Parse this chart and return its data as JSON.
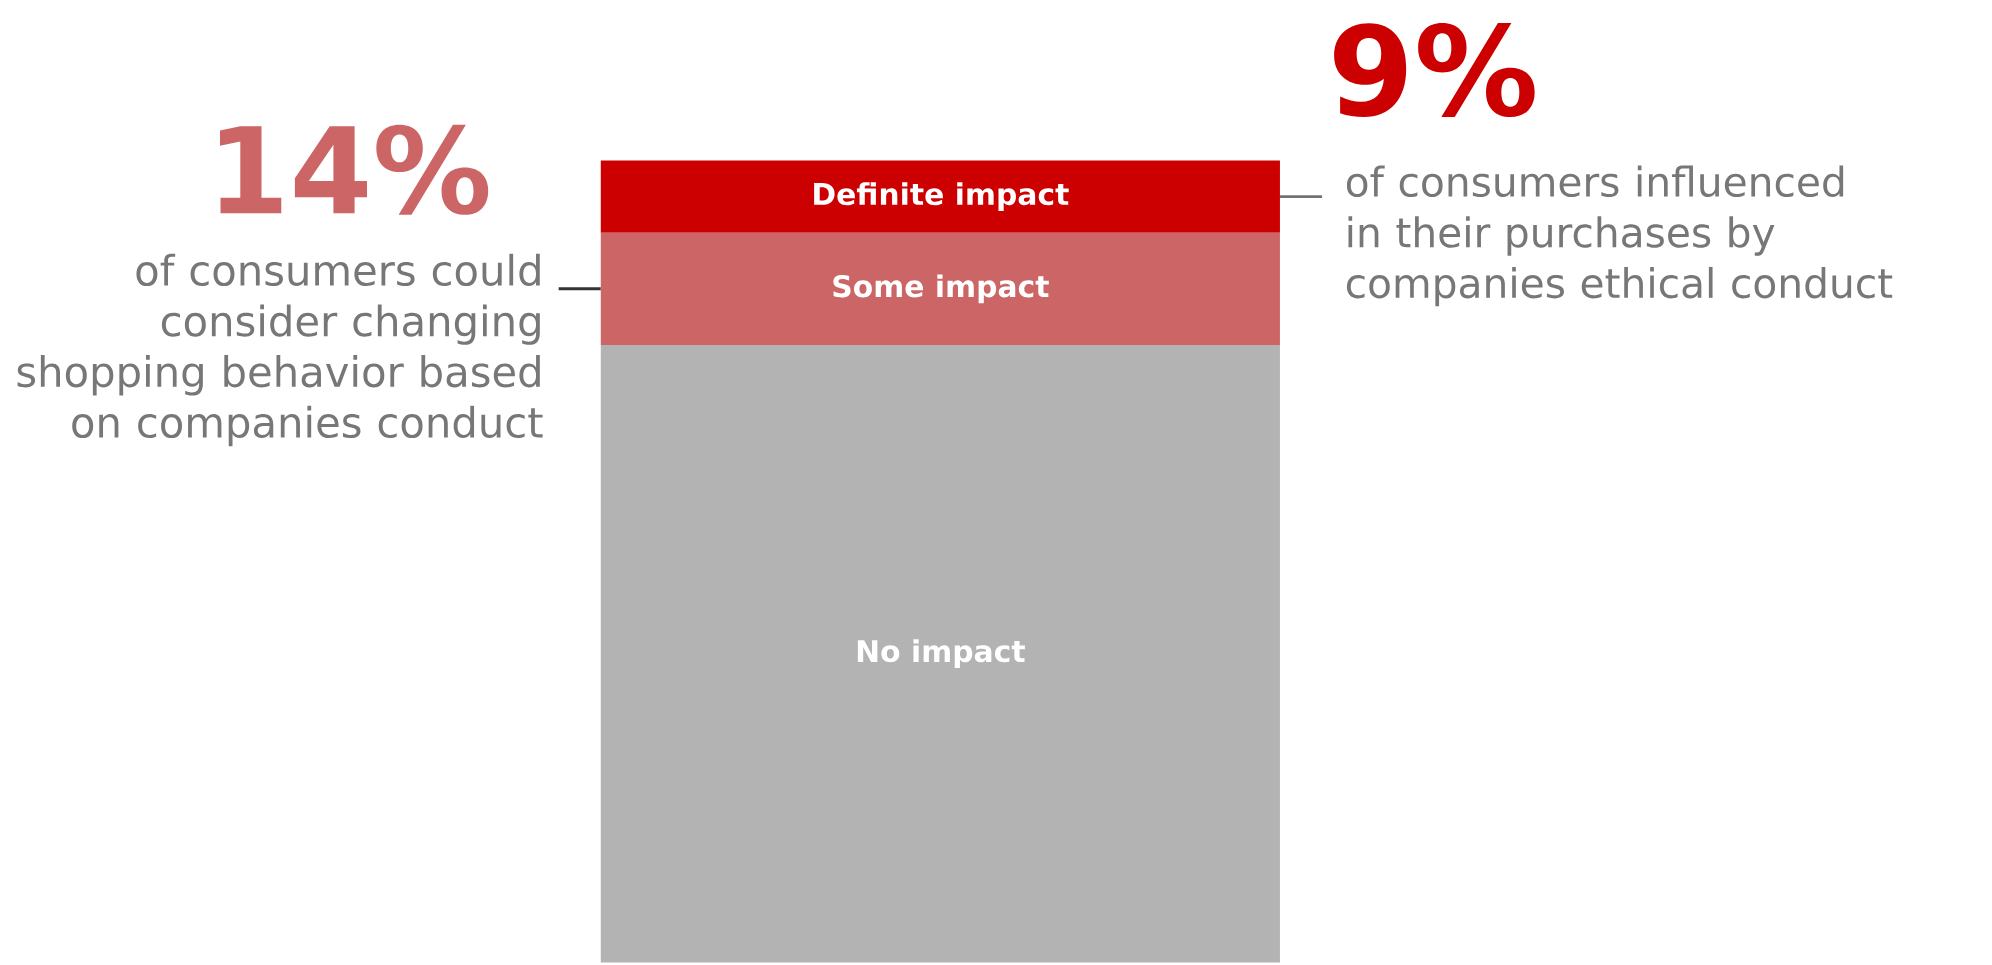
{
  "chart_data": {
    "type": "bar",
    "stacked": true,
    "categories": [
      null
    ],
    "series": [
      {
        "name": "No impact",
        "color": "#b3b3b3",
        "values": [
          77
        ]
      },
      {
        "name": "Some impact",
        "color": "#cc6666",
        "values": [
          14
        ],
        "value_labels": [
          "14%"
        ]
      },
      {
        "name": "Definite impact",
        "color": "#cc0000",
        "values": [
          9
        ],
        "value_labels": [
          "9%"
        ]
      }
    ],
    "annotations": [
      "of consumers could consider changing shopping behavior based on companies conduct",
      "of consumers influenced in their purchases by companies ethical conduct"
    ]
  }
}
